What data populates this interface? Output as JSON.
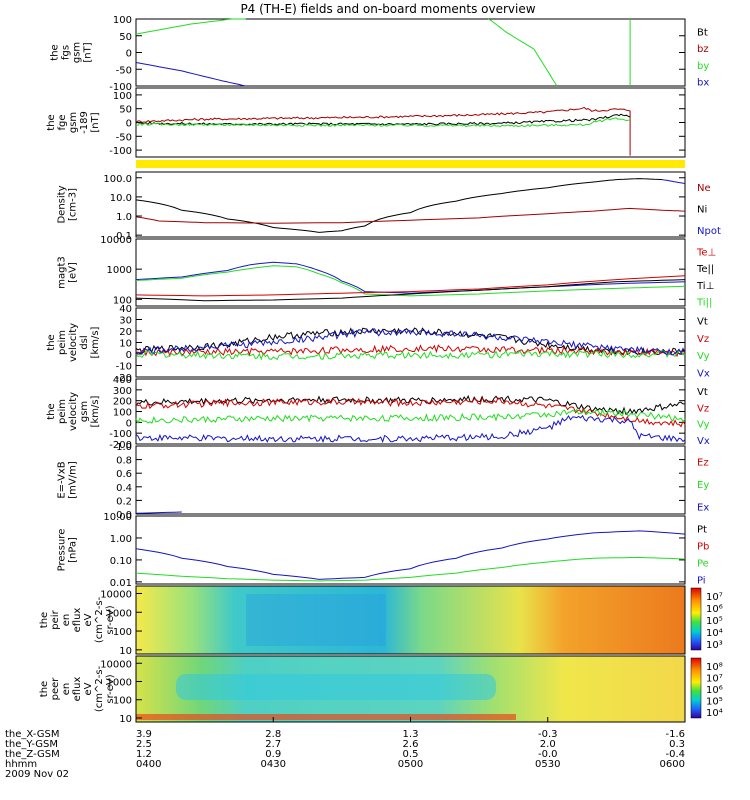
{
  "title": "P4 (TH-E) fields and on-board moments overview",
  "colors": {
    "black": "#000000",
    "red": "#d40000",
    "darkred": "#a30000",
    "green": "#22dd22",
    "blue": "#1414c8",
    "yellow": "#ffea00"
  },
  "chart_data": [
    {
      "type": "line",
      "panel": "fgs_gsm",
      "ylabel": [
        "the",
        "fgs",
        "gsm",
        "[nT]"
      ],
      "yticks": [
        "100",
        "50",
        "0",
        "-50",
        "-100"
      ],
      "ylim": [
        -100,
        100
      ],
      "legend": [
        {
          "name": "Bt",
          "color": "#000000"
        },
        {
          "name": "bz",
          "color": "#a30000"
        },
        {
          "name": "by",
          "color": "#22dd22"
        },
        {
          "name": "bx",
          "color": "#1414c8"
        }
      ],
      "series": [
        {
          "name": "by",
          "color": "#22dd22",
          "x": [
            "04:00",
            "04:12",
            "04:21",
            "04:24"
          ],
          "y": [
            55,
            85,
            100,
            102
          ]
        },
        {
          "name": "by",
          "color": "#22dd22",
          "x": [
            "05:17",
            "05:21",
            "05:27",
            "05:32"
          ],
          "y": [
            102,
            60,
            10,
            -100
          ]
        },
        {
          "name": "by",
          "color": "#22dd22",
          "x": [
            "05:48",
            "05:48"
          ],
          "y": [
            -100,
            100
          ]
        },
        {
          "name": "bx",
          "color": "#1414c8",
          "x": [
            "04:00",
            "04:10",
            "04:19",
            "04:24"
          ],
          "y": [
            -30,
            -55,
            -85,
            -100
          ]
        }
      ]
    },
    {
      "type": "line",
      "panel": "fge_gsm",
      "ylabel": [
        "the",
        "fge",
        "gsm",
        "-189",
        "[nT]"
      ],
      "yticks": [
        "100",
        "50",
        "0",
        "-50",
        "-100"
      ],
      "ylim": [
        -125,
        125
      ],
      "series": [
        {
          "name": "bz",
          "color": "#a30000",
          "x": [
            "04:00",
            "04:15",
            "04:30",
            "04:45",
            "05:00",
            "05:15",
            "05:30",
            "05:38",
            "05:40",
            "05:45",
            "05:48",
            "05:48"
          ],
          "y": [
            3,
            12,
            15,
            18,
            22,
            28,
            38,
            52,
            42,
            48,
            45,
            -120
          ]
        },
        {
          "name": "Bt",
          "color": "#000000",
          "x": [
            "04:00",
            "04:20",
            "04:40",
            "05:00",
            "05:20",
            "05:30",
            "05:40",
            "05:46",
            "05:48"
          ],
          "y": [
            -2,
            -6,
            -5,
            -6,
            -3,
            4,
            10,
            30,
            20
          ]
        },
        {
          "name": "by",
          "color": "#22dd22",
          "x": [
            "04:00",
            "04:20",
            "04:40",
            "05:00",
            "05:20",
            "05:30",
            "05:38",
            "05:44",
            "05:48"
          ],
          "y": [
            -6,
            -8,
            -10,
            -10,
            -12,
            -10,
            -8,
            15,
            10
          ]
        }
      ]
    },
    {
      "type": "line",
      "panel": "density",
      "ylabel": [
        "Density",
        "[cm-3]"
      ],
      "yticks": [
        "100.0",
        "10.0",
        "1.0",
        "0.1"
      ],
      "ylim": [
        0.08,
        200
      ],
      "log": true,
      "legend": [
        {
          "name": "Ne",
          "color": "#a30000"
        },
        {
          "name": "Ni",
          "color": "#000000"
        },
        {
          "name": "Npot",
          "color": "#1414c8"
        }
      ],
      "series": [
        {
          "name": "Ni",
          "color": "#000000",
          "x": [
            "04:00",
            "04:10",
            "04:20",
            "04:30",
            "04:40",
            "04:45",
            "04:50",
            "05:00",
            "05:10",
            "05:20",
            "05:30",
            "05:40",
            "05:45",
            "05:50",
            "05:55"
          ],
          "y": [
            7,
            2,
            0.7,
            0.25,
            0.14,
            0.17,
            0.3,
            1.5,
            6,
            15,
            30,
            60,
            80,
            90,
            80
          ]
        },
        {
          "name": "Ne",
          "color": "#a30000",
          "x": [
            "04:00",
            "04:05",
            "04:15",
            "04:30",
            "04:45",
            "05:00",
            "05:15",
            "05:30",
            "05:40",
            "05:48",
            "05:55",
            "06:00"
          ],
          "y": [
            0.9,
            0.55,
            0.45,
            0.42,
            0.45,
            0.6,
            0.8,
            1.3,
            1.8,
            2.5,
            2,
            1.8
          ]
        },
        {
          "name": "Npot",
          "color": "#1414c8",
          "x": [
            "05:55",
            "05:58",
            "06:00"
          ],
          "y": [
            80,
            60,
            50
          ]
        }
      ]
    },
    {
      "type": "line",
      "panel": "magt3",
      "ylabel": [
        "magt3",
        "[eV]"
      ],
      "yticks": [
        "10000",
        "1000",
        "100"
      ],
      "ylim": [
        60,
        10000
      ],
      "log": true,
      "legend": [
        {
          "name": "Te⊥",
          "color": "#d40000"
        },
        {
          "name": "Te||",
          "color": "#000000"
        },
        {
          "name": "Ti⊥",
          "color": "#000000"
        },
        {
          "name": "Ti||",
          "color": "#22dd22"
        }
      ],
      "series": [
        {
          "name": "Ti⊥",
          "color": "#1414c8",
          "x": [
            "04:00",
            "04:10",
            "04:20",
            "04:25",
            "04:30",
            "04:35",
            "04:40",
            "04:45",
            "04:50",
            "05:00",
            "05:15",
            "05:30",
            "05:45",
            "06:00"
          ],
          "y": [
            450,
            550,
            900,
            1400,
            1700,
            1500,
            900,
            400,
            180,
            160,
            200,
            260,
            330,
            380
          ]
        },
        {
          "name": "Ti||",
          "color": "#22dd22",
          "x": [
            "04:00",
            "04:10",
            "04:20",
            "04:30",
            "04:35",
            "04:40",
            "04:45",
            "04:50",
            "05:00",
            "05:15",
            "05:30",
            "05:45",
            "06:00"
          ],
          "y": [
            420,
            500,
            800,
            1300,
            1200,
            700,
            350,
            150,
            130,
            150,
            190,
            230,
            270
          ]
        },
        {
          "name": "Te⊥",
          "color": "#d40000",
          "x": [
            "04:00",
            "04:15",
            "04:30",
            "04:45",
            "05:00",
            "05:15",
            "05:30",
            "05:45",
            "06:00"
          ],
          "y": [
            140,
            130,
            140,
            160,
            180,
            220,
            300,
            450,
            600
          ]
        },
        {
          "name": "Te||",
          "color": "#000000",
          "x": [
            "04:00",
            "04:15",
            "04:30",
            "04:45",
            "05:00",
            "05:15",
            "05:30",
            "05:45",
            "06:00"
          ],
          "y": [
            110,
            90,
            95,
            110,
            150,
            200,
            260,
            380,
            450
          ]
        }
      ]
    },
    {
      "type": "line",
      "panel": "peim_velocity_dsl",
      "ylabel": [
        "the",
        "peim",
        "velocity",
        "dsl",
        "[km/s]"
      ],
      "yticks": [
        "40",
        "30",
        "20",
        "10",
        "0",
        "-10",
        "-20"
      ],
      "ylim": [
        -20,
        40
      ],
      "legend": [
        {
          "name": "Vt",
          "color": "#000000"
        },
        {
          "name": "Vz",
          "color": "#d40000"
        },
        {
          "name": "Vy",
          "color": "#22dd22"
        },
        {
          "name": "Vx",
          "color": "#1414c8"
        }
      ],
      "series": [
        {
          "name": "Vt",
          "color": "#000000",
          "x": [
            "04:00",
            "04:20",
            "04:30",
            "04:40",
            "04:50",
            "05:00",
            "05:10",
            "05:20",
            "05:30",
            "05:40",
            "05:50",
            "06:00"
          ],
          "y": [
            3,
            8,
            15,
            18,
            20,
            20,
            18,
            14,
            8,
            4,
            2,
            2
          ]
        },
        {
          "name": "Vz",
          "color": "#d40000",
          "x": [
            "04:00",
            "04:30",
            "05:00",
            "05:30",
            "06:00"
          ],
          "y": [
            1,
            2,
            5,
            3,
            1
          ]
        },
        {
          "name": "Vy",
          "color": "#22dd22",
          "x": [
            "04:00",
            "04:30",
            "05:00",
            "05:30",
            "06:00"
          ],
          "y": [
            0,
            -2,
            -1,
            0,
            0
          ]
        },
        {
          "name": "Vx",
          "color": "#1414c8",
          "x": [
            "04:00",
            "04:30",
            "04:50",
            "05:10",
            "05:30",
            "05:50",
            "06:00"
          ],
          "y": [
            2,
            10,
            19,
            18,
            10,
            3,
            2
          ]
        }
      ]
    },
    {
      "type": "line",
      "panel": "peim_velocity_gsm",
      "ylabel": [
        "the",
        "peim",
        "velocity",
        "gsm",
        "[km/s]"
      ],
      "yticks": [
        "400",
        "300",
        "200",
        "100",
        "0",
        "-100",
        "-200"
      ],
      "ylim": [
        -200,
        400
      ],
      "legend": [
        {
          "name": "Vt",
          "color": "#000000"
        },
        {
          "name": "Vz",
          "color": "#d40000"
        },
        {
          "name": "Vy",
          "color": "#22dd22"
        },
        {
          "name": "Vx",
          "color": "#1414c8"
        }
      ],
      "series": [
        {
          "name": "Vt",
          "color": "#000000",
          "x": [
            "04:00",
            "04:20",
            "04:40",
            "05:00",
            "05:20",
            "05:30",
            "05:40",
            "05:48",
            "05:55",
            "06:00"
          ],
          "y": [
            180,
            200,
            210,
            200,
            220,
            200,
            120,
            100,
            140,
            170
          ]
        },
        {
          "name": "Vz",
          "color": "#d40000",
          "x": [
            "04:00",
            "04:20",
            "04:40",
            "05:00",
            "05:20",
            "05:30",
            "05:40",
            "05:50",
            "06:00"
          ],
          "y": [
            150,
            180,
            190,
            180,
            200,
            150,
            90,
            20,
            -20
          ]
        },
        {
          "name": "Vy",
          "color": "#22dd22",
          "x": [
            "04:00",
            "04:20",
            "04:40",
            "05:00",
            "05:20",
            "05:35",
            "05:45",
            "06:00"
          ],
          "y": [
            20,
            30,
            40,
            40,
            50,
            90,
            90,
            30
          ]
        },
        {
          "name": "Vx",
          "color": "#1414c8",
          "x": [
            "04:00",
            "04:20",
            "04:40",
            "05:00",
            "05:20",
            "05:30",
            "05:35",
            "05:45",
            "05:48",
            "05:50",
            "06:00"
          ],
          "y": [
            -140,
            -150,
            -150,
            -150,
            -130,
            -50,
            40,
            20,
            0,
            -130,
            -160
          ]
        }
      ]
    },
    {
      "type": "line",
      "panel": "e_vxb",
      "ylabel": [
        "E=-VxB",
        "[mV/m]"
      ],
      "yticks": [
        "1.0",
        "0.8",
        "0.6",
        "0.4",
        "0.2",
        "0.0"
      ],
      "ylim": [
        0,
        1
      ],
      "legend": [
        {
          "name": "Ez",
          "color": "#d40000"
        },
        {
          "name": "Ey",
          "color": "#22dd22"
        },
        {
          "name": "Ex",
          "color": "#1414c8"
        }
      ],
      "series": [
        {
          "name": "Ex",
          "color": "#1414c8",
          "x": [
            "04:00",
            "04:10"
          ],
          "y": [
            0.01,
            0.03
          ]
        }
      ]
    },
    {
      "type": "line",
      "panel": "pressure",
      "ylabel": [
        "Pressure",
        "[nPa]"
      ],
      "yticks": [
        "10.00",
        "1.00",
        "0.10",
        "0.01"
      ],
      "ylim": [
        0.008,
        10
      ],
      "log": true,
      "legend": [
        {
          "name": "Pt",
          "color": "#000000"
        },
        {
          "name": "Pb",
          "color": "#d40000"
        },
        {
          "name": "Pe",
          "color": "#22dd22"
        },
        {
          "name": "Pi",
          "color": "#1414c8"
        }
      ],
      "series": [
        {
          "name": "Pi",
          "color": "#1414c8",
          "x": [
            "04:00",
            "04:10",
            "04:20",
            "04:30",
            "04:40",
            "04:50",
            "05:00",
            "05:10",
            "05:20",
            "05:30",
            "05:40",
            "05:50",
            "06:00"
          ],
          "y": [
            0.32,
            0.12,
            0.05,
            0.022,
            0.013,
            0.016,
            0.04,
            0.12,
            0.35,
            0.9,
            1.7,
            2.1,
            1.5
          ]
        },
        {
          "name": "Pe",
          "color": "#22dd22",
          "x": [
            "04:00",
            "04:10",
            "04:20",
            "04:30",
            "04:40",
            "04:50",
            "05:00",
            "05:10",
            "05:20",
            "05:30",
            "05:40",
            "05:50",
            "06:00"
          ],
          "y": [
            0.025,
            0.018,
            0.014,
            0.012,
            0.011,
            0.012,
            0.016,
            0.025,
            0.045,
            0.08,
            0.12,
            0.13,
            0.11
          ]
        }
      ]
    },
    {
      "type": "heatmap",
      "panel": "peir_en_eflux",
      "ylabel": [
        "the",
        "peir",
        "en",
        "eflux",
        "eV",
        "(cm^2-s-",
        "sr-eV)"
      ],
      "yticks": [
        "10000",
        "1000",
        "100",
        "10"
      ],
      "log": true,
      "colorbar_ticks": [
        "10⁷",
        "10⁶",
        "10⁵",
        "10⁴",
        "10³"
      ]
    },
    {
      "type": "heatmap",
      "panel": "peer_en_eflux",
      "ylabel": [
        "the",
        "peer",
        "en",
        "eflux",
        "eV",
        "(cm^2-s-",
        "sr-eV)"
      ],
      "yticks": [
        "10000",
        "1000",
        "100",
        "10"
      ],
      "log": true,
      "colorbar_ticks": [
        "10⁸",
        "10⁷",
        "10⁶",
        "10⁵",
        "10⁴"
      ]
    }
  ],
  "xaxis": {
    "rows": [
      {
        "label": "the_X-GSM",
        "values": [
          "3.9",
          "2.8",
          "1.3",
          "-0.3",
          "-1.6"
        ]
      },
      {
        "label": "the_Y-GSM",
        "values": [
          "2.5",
          "2.7",
          "2.6",
          "2.0",
          "0.3"
        ]
      },
      {
        "label": "the_Z-GSM",
        "values": [
          "1.2",
          "0.9",
          "0.5",
          "-0.0",
          "-0.4"
        ]
      },
      {
        "label": "hhmm",
        "values": [
          "0400",
          "0430",
          "0500",
          "0530",
          "0600"
        ]
      }
    ],
    "date": "2009 Nov 02"
  }
}
